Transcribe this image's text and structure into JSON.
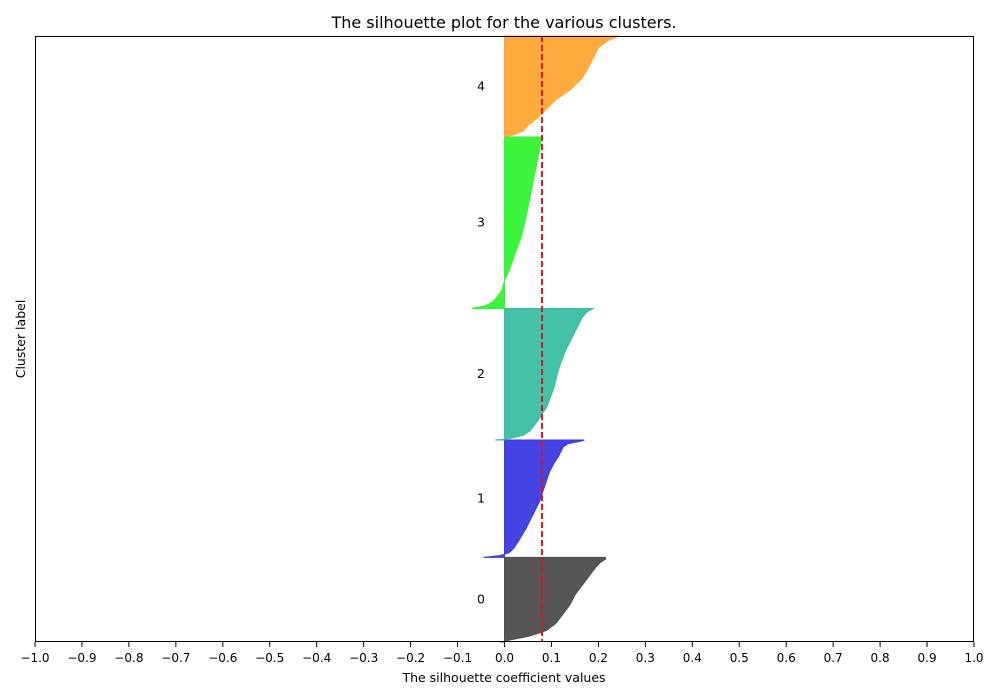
{
  "chart_data": {
    "type": "area",
    "title": "The silhouette plot for the various clusters.",
    "xlabel": "The silhouette coefficient values",
    "ylabel": "Cluster label",
    "xlim": [
      -1.0,
      1.0
    ],
    "ylim": [
      0,
      1290
    ],
    "x_ticks": [
      "−1.0",
      "−0.9",
      "−0.8",
      "−0.7",
      "−0.6",
      "−0.5",
      "−0.4",
      "−0.3",
      "−0.2",
      "−0.1",
      "0.0",
      "0.1",
      "0.2",
      "0.3",
      "0.4",
      "0.5",
      "0.6",
      "0.7",
      "0.8",
      "0.9",
      "1.0"
    ],
    "average_silhouette": 0.08,
    "clusters": [
      {
        "label": "0",
        "color": "#4d4d4d",
        "y_lower": 0,
        "y_upper": 180,
        "profile": [
          [
            0,
            -0.01
          ],
          [
            2,
            0.0
          ],
          [
            4,
            0.01
          ],
          [
            8,
            0.03
          ],
          [
            12,
            0.05
          ],
          [
            18,
            0.07
          ],
          [
            25,
            0.09
          ],
          [
            40,
            0.11
          ],
          [
            60,
            0.125
          ],
          [
            80,
            0.14
          ],
          [
            100,
            0.15
          ],
          [
            120,
            0.165
          ],
          [
            140,
            0.18
          ],
          [
            160,
            0.195
          ],
          [
            170,
            0.205
          ],
          [
            176,
            0.215
          ],
          [
            180,
            0.215
          ]
        ]
      },
      {
        "label": "1",
        "color": "#3a3ae0",
        "y_lower": 180,
        "y_upper": 430,
        "profile": [
          [
            180,
            -0.045
          ],
          [
            184,
            -0.01
          ],
          [
            190,
            0.01
          ],
          [
            200,
            0.02
          ],
          [
            215,
            0.03
          ],
          [
            240,
            0.045
          ],
          [
            270,
            0.06
          ],
          [
            300,
            0.075
          ],
          [
            330,
            0.085
          ],
          [
            360,
            0.095
          ],
          [
            380,
            0.105
          ],
          [
            395,
            0.115
          ],
          [
            405,
            0.12
          ],
          [
            415,
            0.125
          ],
          [
            422,
            0.135
          ],
          [
            428,
            0.165
          ],
          [
            430,
            0.17
          ]
        ]
      },
      {
        "label": "2",
        "color": "#39bfa2",
        "y_lower": 430,
        "y_upper": 710,
        "profile": [
          [
            430,
            -0.02
          ],
          [
            433,
            0.01
          ],
          [
            440,
            0.04
          ],
          [
            450,
            0.055
          ],
          [
            470,
            0.07
          ],
          [
            500,
            0.09
          ],
          [
            540,
            0.105
          ],
          [
            580,
            0.115
          ],
          [
            620,
            0.13
          ],
          [
            660,
            0.15
          ],
          [
            690,
            0.165
          ],
          [
            702,
            0.175
          ],
          [
            708,
            0.185
          ],
          [
            710,
            0.19
          ]
        ]
      },
      {
        "label": "3",
        "color": "#33f333",
        "y_lower": 710,
        "y_upper": 1075,
        "profile": [
          [
            710,
            -0.07
          ],
          [
            716,
            -0.04
          ],
          [
            724,
            -0.025
          ],
          [
            735,
            -0.015
          ],
          [
            750,
            -0.005
          ],
          [
            770,
            0.0
          ],
          [
            790,
            0.01
          ],
          [
            820,
            0.02
          ],
          [
            860,
            0.035
          ],
          [
            900,
            0.045
          ],
          [
            950,
            0.055
          ],
          [
            1000,
            0.065
          ],
          [
            1040,
            0.073
          ],
          [
            1075,
            0.08
          ]
        ]
      },
      {
        "label": "4",
        "color": "#ffa733",
        "y_lower": 1075,
        "y_upper": 1290,
        "profile": [
          [
            1075,
            0.0
          ],
          [
            1080,
            0.02
          ],
          [
            1088,
            0.04
          ],
          [
            1100,
            0.05
          ],
          [
            1115,
            0.07
          ],
          [
            1135,
            0.09
          ],
          [
            1155,
            0.11
          ],
          [
            1175,
            0.14
          ],
          [
            1200,
            0.165
          ],
          [
            1225,
            0.18
          ],
          [
            1245,
            0.19
          ],
          [
            1265,
            0.2
          ],
          [
            1280,
            0.22
          ],
          [
            1290,
            0.245
          ]
        ]
      }
    ]
  }
}
